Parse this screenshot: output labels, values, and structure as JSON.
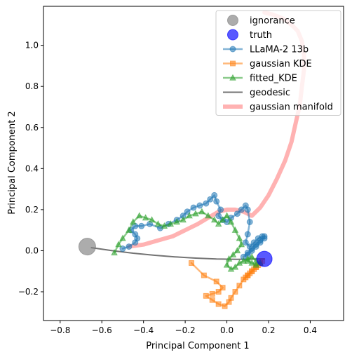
{
  "chart_data": {
    "type": "line",
    "title": "",
    "xlabel": "Principal Component 1",
    "ylabel": "Principal Component 2",
    "xlim": [
      -0.88,
      0.56
    ],
    "ylim": [
      -0.34,
      1.19
    ],
    "xticks": [
      -0.8,
      -0.6,
      -0.4,
      -0.2,
      0.0,
      0.2,
      0.4
    ],
    "yticks": [
      -0.2,
      0.0,
      0.2,
      0.4,
      0.6,
      0.8,
      1.0
    ],
    "xtick_labels": [
      "−0.8",
      "−0.6",
      "−0.4",
      "−0.2",
      "0.0",
      "0.2",
      "0.4"
    ],
    "ytick_labels": [
      "−0.2",
      "0.0",
      "0.2",
      "0.4",
      "0.6",
      "0.8",
      "1.0"
    ],
    "grid": false,
    "legend_position": "top-right",
    "series": [
      {
        "name": "gaussian manifold",
        "kind": "line",
        "color": "#ff0000",
        "opacity": 0.3,
        "x": [
          -0.47,
          -0.4,
          -0.33,
          -0.26,
          -0.2,
          -0.14,
          -0.09,
          -0.04,
          0.0,
          0.04,
          0.08,
          0.12,
          0.16,
          0.2,
          0.24,
          0.28,
          0.31,
          0.33,
          0.35,
          0.36,
          0.37,
          0.37,
          0.36,
          0.34,
          0.31,
          0.27,
          0.22,
          0.18
        ],
        "y": [
          0.02,
          0.03,
          0.05,
          0.07,
          0.1,
          0.13,
          0.16,
          0.19,
          0.2,
          0.2,
          0.19,
          0.17,
          0.21,
          0.27,
          0.35,
          0.44,
          0.53,
          0.62,
          0.71,
          0.8,
          0.88,
          0.95,
          1.02,
          1.07,
          1.1,
          1.13,
          1.15,
          1.16
        ]
      },
      {
        "name": "geodesic",
        "kind": "line",
        "color": "#000000",
        "opacity": 0.55,
        "x": [
          -0.65,
          -0.55,
          -0.45,
          -0.35,
          -0.25,
          -0.15,
          -0.05,
          0.05,
          0.12,
          0.18
        ],
        "y": [
          0.015,
          0.0,
          -0.012,
          -0.022,
          -0.03,
          -0.036,
          -0.04,
          -0.042,
          -0.041,
          -0.04
        ]
      },
      {
        "name": "LLaMA-2 13b",
        "kind": "line-marker",
        "marker": "circle",
        "color": "#1f77b4",
        "opacity": 0.55,
        "x": [
          -0.5,
          -0.47,
          -0.44,
          -0.43,
          -0.44,
          -0.46,
          -0.44,
          -0.41,
          -0.37,
          -0.32,
          -0.28,
          -0.24,
          -0.21,
          -0.19,
          -0.16,
          -0.13,
          -0.1,
          -0.08,
          -0.06,
          -0.05,
          -0.03,
          -0.04,
          -0.02,
          0.0,
          0.02,
          0.05,
          0.07,
          0.09,
          0.1,
          0.11,
          0.1,
          0.09,
          0.11,
          0.13,
          0.15,
          0.17,
          0.18,
          0.16,
          0.14,
          0.12,
          0.1,
          0.08,
          0.1,
          0.12,
          0.14,
          0.16,
          0.18
        ],
        "y": [
          0.01,
          0.02,
          0.04,
          0.06,
          0.08,
          0.1,
          0.12,
          0.12,
          0.13,
          0.11,
          0.13,
          0.15,
          0.17,
          0.19,
          0.21,
          0.22,
          0.23,
          0.25,
          0.27,
          0.24,
          0.2,
          0.17,
          0.15,
          0.14,
          0.16,
          0.18,
          0.2,
          0.22,
          0.2,
          0.14,
          0.08,
          0.04,
          0.02,
          0.04,
          0.06,
          0.07,
          0.06,
          0.04,
          0.02,
          0.0,
          -0.02,
          -0.03,
          -0.01,
          0.01,
          0.03,
          0.05,
          0.07
        ]
      },
      {
        "name": "gaussian KDE",
        "kind": "line-marker",
        "marker": "square",
        "color": "#ff7f0e",
        "opacity": 0.55,
        "x": [
          -0.17,
          -0.11,
          -0.05,
          -0.02,
          -0.04,
          -0.07,
          -0.1,
          -0.07,
          -0.04,
          -0.01,
          0.01,
          0.02,
          0.04,
          0.06,
          0.08,
          0.1,
          0.12,
          0.14,
          0.16,
          0.17,
          0.15,
          0.13,
          0.11,
          0.09,
          0.1,
          0.12,
          0.14,
          0.16
        ],
        "y": [
          -0.06,
          -0.12,
          -0.15,
          -0.18,
          -0.2,
          -0.21,
          -0.22,
          -0.24,
          -0.26,
          -0.27,
          -0.25,
          -0.23,
          -0.2,
          -0.17,
          -0.14,
          -0.12,
          -0.1,
          -0.08,
          -0.06,
          -0.05,
          -0.07,
          -0.09,
          -0.11,
          -0.13,
          -0.12,
          -0.1,
          -0.08,
          -0.06
        ]
      },
      {
        "name": "fitted_KDE",
        "kind": "line-marker",
        "marker": "triangle",
        "color": "#2ca02c",
        "opacity": 0.55,
        "x": [
          -0.54,
          -0.52,
          -0.5,
          -0.47,
          -0.45,
          -0.42,
          -0.39,
          -0.36,
          -0.33,
          -0.3,
          -0.27,
          -0.24,
          -0.21,
          -0.18,
          -0.15,
          -0.12,
          -0.09,
          -0.06,
          -0.04,
          -0.02,
          0.0,
          0.02,
          0.04,
          0.06,
          0.07,
          0.05,
          0.03,
          0.01,
          0.0,
          0.02,
          0.04,
          0.06,
          0.08,
          0.1,
          0.12,
          0.14,
          0.16,
          0.14,
          0.12,
          0.1
        ],
        "y": [
          -0.01,
          0.03,
          0.06,
          0.1,
          0.14,
          0.17,
          0.16,
          0.15,
          0.13,
          0.12,
          0.13,
          0.14,
          0.15,
          0.17,
          0.18,
          0.19,
          0.17,
          0.15,
          0.13,
          0.15,
          0.17,
          0.14,
          0.1,
          0.06,
          0.03,
          0.0,
          -0.02,
          -0.04,
          -0.07,
          -0.09,
          -0.08,
          -0.06,
          -0.05,
          -0.04,
          -0.03,
          -0.05,
          -0.06,
          -0.07,
          -0.06,
          -0.05
        ]
      },
      {
        "name": "ignorance",
        "kind": "point",
        "color": "#808080",
        "opacity": 0.65,
        "size": 12,
        "x": [
          -0.67
        ],
        "y": [
          0.02
        ]
      },
      {
        "name": "truth",
        "kind": "point",
        "color": "#0000ff",
        "opacity": 0.65,
        "size": 11,
        "x": [
          0.18
        ],
        "y": [
          -0.04
        ]
      }
    ],
    "legend_order": [
      "ignorance",
      "truth",
      "LLaMA-2 13b",
      "gaussian KDE",
      "fitted_KDE",
      "geodesic",
      "gaussian manifold"
    ]
  }
}
